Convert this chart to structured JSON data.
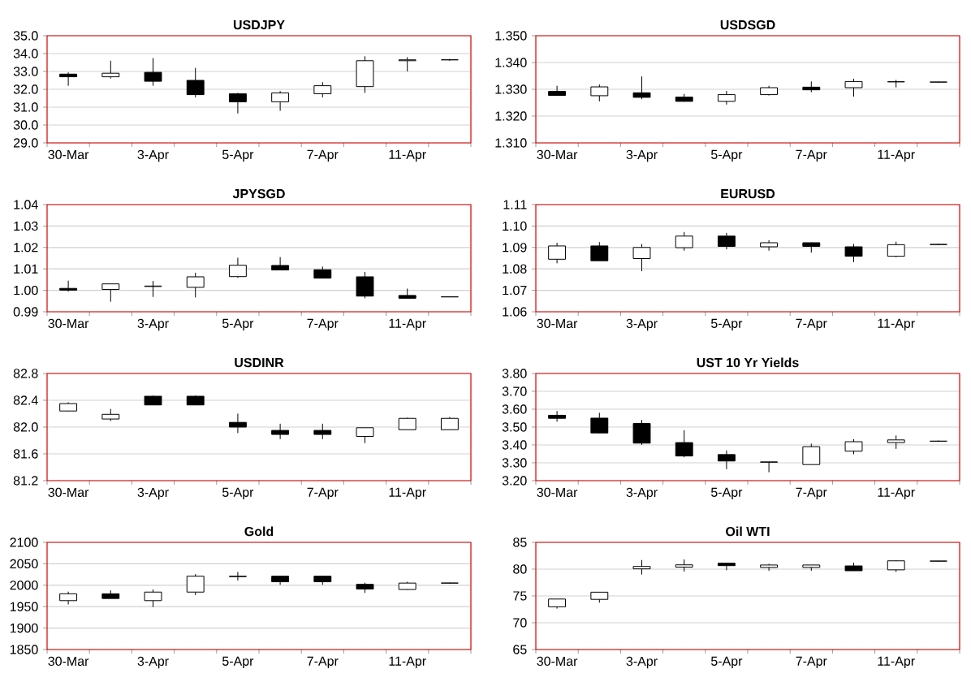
{
  "chart_data": [
    {
      "type": "candlestick",
      "title": "USDJPY",
      "categories": [
        "30-Mar",
        null,
        "3-Apr",
        null,
        "5-Apr",
        null,
        "7-Apr",
        null,
        "11-Apr",
        null
      ],
      "grid": "y",
      "ylim": [
        29,
        35
      ],
      "yticks": [
        {
          "value": 29,
          "label": "29.0"
        },
        {
          "value": 30,
          "label": "30.0"
        },
        {
          "value": 31,
          "label": "31.0"
        },
        {
          "value": 32,
          "label": "32.0"
        },
        {
          "value": 33,
          "label": "33.0"
        },
        {
          "value": 34,
          "label": "34.0"
        },
        {
          "value": 35,
          "label": "35.0"
        }
      ],
      "ohlc": [
        [
          32.85,
          32.95,
          32.2,
          32.7
        ],
        [
          32.7,
          33.6,
          32.6,
          32.9
        ],
        [
          32.95,
          33.75,
          32.2,
          32.45
        ],
        [
          32.5,
          33.2,
          31.55,
          31.7
        ],
        [
          31.75,
          31.8,
          30.65,
          31.3
        ],
        [
          31.3,
          31.9,
          30.8,
          31.8
        ],
        [
          31.75,
          32.4,
          31.55,
          32.2
        ],
        [
          32.15,
          33.85,
          31.8,
          33.6
        ],
        [
          33.6,
          33.8,
          33.0,
          33.65
        ],
        [
          33.65,
          33.7,
          33.6,
          33.65
        ]
      ]
    },
    {
      "type": "candlestick",
      "title": "USDSGD",
      "categories": [
        "30-Mar",
        null,
        "3-Apr",
        null,
        "5-Apr",
        null,
        "7-Apr",
        null,
        "11-Apr",
        null
      ],
      "grid": "y",
      "ylim": [
        1.31,
        1.35
      ],
      "yticks": [
        {
          "value": 1.31,
          "label": "1.310"
        },
        {
          "value": 1.32,
          "label": "1.320"
        },
        {
          "value": 1.33,
          "label": "1.330"
        },
        {
          "value": 1.34,
          "label": "1.340"
        },
        {
          "value": 1.35,
          "label": "1.350"
        }
      ],
      "ohlc": [
        [
          1.3292,
          1.3313,
          1.3276,
          1.3277
        ],
        [
          1.3276,
          1.3318,
          1.3255,
          1.3309
        ],
        [
          1.3287,
          1.3348,
          1.3263,
          1.327
        ],
        [
          1.3271,
          1.3283,
          1.3254,
          1.3255
        ],
        [
          1.3255,
          1.3294,
          1.3243,
          1.328
        ],
        [
          1.328,
          1.3313,
          1.3277,
          1.3306
        ],
        [
          1.3308,
          1.3329,
          1.3289,
          1.3298
        ],
        [
          1.3306,
          1.3339,
          1.3273,
          1.3329
        ],
        [
          1.3328,
          1.3335,
          1.3307,
          1.3328
        ],
        [
          1.3327,
          1.3328,
          1.3325,
          1.3327
        ]
      ]
    },
    {
      "type": "candlestick",
      "title": "JPYSGD",
      "categories": [
        "30-Mar",
        null,
        "3-Apr",
        null,
        "5-Apr",
        null,
        "7-Apr",
        null,
        "11-Apr",
        null
      ],
      "grid": "y",
      "ylim": [
        0.99,
        1.04
      ],
      "yticks": [
        {
          "value": 0.99,
          "label": "0.99"
        },
        {
          "value": 1.0,
          "label": "1.00"
        },
        {
          "value": 1.01,
          "label": "1.01"
        },
        {
          "value": 1.02,
          "label": "1.02"
        },
        {
          "value": 1.03,
          "label": "1.03"
        },
        {
          "value": 1.04,
          "label": "1.04"
        }
      ],
      "ohlc": [
        [
          1.0009,
          1.0045,
          0.9994,
          1.0001
        ],
        [
          1.0004,
          1.003,
          0.9947,
          1.003
        ],
        [
          1.0018,
          1.0044,
          0.9969,
          1.002
        ],
        [
          1.0014,
          1.0082,
          0.9967,
          1.0063
        ],
        [
          1.0064,
          1.0152,
          1.0058,
          1.0117
        ],
        [
          1.0116,
          1.0155,
          1.0094,
          1.0095
        ],
        [
          1.0096,
          1.0111,
          1.0056,
          1.0057
        ],
        [
          1.0063,
          1.0086,
          0.9963,
          0.9973
        ],
        [
          0.9976,
          1.0008,
          0.9962,
          0.9963
        ],
        [
          0.997,
          0.9972,
          0.9968,
          0.9969
        ]
      ]
    },
    {
      "type": "candlestick",
      "title": "EURUSD",
      "categories": [
        "30-Mar",
        null,
        "3-Apr",
        null,
        "5-Apr",
        null,
        "7-Apr",
        null,
        "11-Apr",
        null
      ],
      "grid": "y",
      "ylim": [
        1.06,
        1.11
      ],
      "yticks": [
        {
          "value": 1.06,
          "label": "1.06"
        },
        {
          "value": 1.07,
          "label": "1.07"
        },
        {
          "value": 1.08,
          "label": "1.08"
        },
        {
          "value": 1.09,
          "label": "1.09"
        },
        {
          "value": 1.1,
          "label": "1.10"
        },
        {
          "value": 1.11,
          "label": "1.11"
        }
      ],
      "ohlc": [
        [
          1.0845,
          1.0922,
          1.0826,
          1.0907
        ],
        [
          1.0907,
          1.0925,
          1.0838,
          1.0838
        ],
        [
          1.0848,
          1.0916,
          1.0789,
          1.09
        ],
        [
          1.0899,
          1.0972,
          1.0885,
          1.0953
        ],
        [
          1.0953,
          1.0968,
          1.0891,
          1.0905
        ],
        [
          1.0903,
          1.0934,
          1.0885,
          1.0922
        ],
        [
          1.0922,
          1.0923,
          1.0876,
          1.0905
        ],
        [
          1.0903,
          1.0916,
          1.0831,
          1.0859
        ],
        [
          1.0859,
          1.0927,
          1.0855,
          1.0913
        ],
        [
          1.0914,
          1.0916,
          1.0912,
          1.0914
        ]
      ]
    },
    {
      "type": "candlestick",
      "title": "USDINR",
      "categories": [
        "30-Mar",
        null,
        "3-Apr",
        null,
        "5-Apr",
        null,
        "7-Apr",
        null,
        "11-Apr",
        null
      ],
      "grid": "y",
      "ylim": [
        81.2,
        82.8
      ],
      "yticks": [
        {
          "value": 81.2,
          "label": "81.2"
        },
        {
          "value": 81.6,
          "label": "81.6"
        },
        {
          "value": 82.0,
          "label": "82.0"
        },
        {
          "value": 82.4,
          "label": "82.4"
        },
        {
          "value": 82.8,
          "label": "82.8"
        }
      ],
      "ohlc": [
        [
          82.24,
          82.37,
          82.23,
          82.35
        ],
        [
          82.12,
          82.27,
          82.09,
          82.19
        ],
        [
          82.46,
          82.47,
          82.33,
          82.33
        ],
        [
          82.46,
          82.47,
          82.33,
          82.33
        ],
        [
          82.07,
          82.2,
          81.91,
          82.0
        ],
        [
          81.95,
          82.05,
          81.82,
          81.89
        ],
        [
          81.95,
          82.05,
          81.82,
          81.89
        ],
        [
          81.86,
          81.99,
          81.76,
          81.99
        ],
        [
          81.96,
          82.14,
          81.96,
          82.13
        ],
        [
          81.96,
          82.15,
          81.96,
          82.13
        ]
      ]
    },
    {
      "type": "candlestick",
      "title": "UST 10 Yr Yields",
      "categories": [
        "30-Mar",
        null,
        "3-Apr",
        null,
        "5-Apr",
        null,
        "7-Apr",
        null,
        "11-Apr",
        null
      ],
      "grid": "y",
      "ylim": [
        3.2,
        3.8
      ],
      "yticks": [
        {
          "value": 3.2,
          "label": "3.20"
        },
        {
          "value": 3.3,
          "label": "3.30"
        },
        {
          "value": 3.4,
          "label": "3.40"
        },
        {
          "value": 3.5,
          "label": "3.50"
        },
        {
          "value": 3.6,
          "label": "3.60"
        },
        {
          "value": 3.7,
          "label": "3.70"
        },
        {
          "value": 3.8,
          "label": "3.80"
        }
      ],
      "ohlc": [
        [
          3.566,
          3.59,
          3.53,
          3.549
        ],
        [
          3.55,
          3.58,
          3.465,
          3.467
        ],
        [
          3.52,
          3.54,
          3.4,
          3.41
        ],
        [
          3.413,
          3.482,
          3.331,
          3.338
        ],
        [
          3.346,
          3.369,
          3.264,
          3.31
        ],
        [
          3.303,
          3.305,
          3.247,
          3.305
        ],
        [
          3.29,
          3.407,
          3.29,
          3.39
        ],
        [
          3.365,
          3.432,
          3.348,
          3.418
        ],
        [
          3.413,
          3.453,
          3.378,
          3.428
        ],
        [
          3.421,
          3.425,
          3.419,
          3.421
        ]
      ]
    },
    {
      "type": "candlestick",
      "title": "Gold",
      "categories": [
        "30-Mar",
        null,
        "3-Apr",
        null,
        "5-Apr",
        null,
        "7-Apr",
        null,
        "11-Apr",
        null
      ],
      "grid": "y",
      "ylim": [
        1850,
        2100
      ],
      "yticks": [
        1850,
        1900,
        1950,
        2000,
        2050,
        2100
      ],
      "ohlc": [
        [
          1964,
          1985,
          1955,
          1980
        ],
        [
          1980,
          1988,
          1969,
          1969
        ],
        [
          1964,
          1990,
          1949,
          1984
        ],
        [
          1984,
          2026,
          1977,
          2021
        ],
        [
          2020,
          2031,
          2011,
          2021
        ],
        [
          2021,
          2022,
          2001,
          2008
        ],
        [
          2021,
          2022,
          2001,
          2008
        ],
        [
          2002,
          2006,
          1982,
          1991
        ],
        [
          1990,
          2008,
          1989,
          2005
        ],
        [
          2005,
          2006,
          2004,
          2005
        ]
      ]
    },
    {
      "type": "candlestick",
      "title": "Oil WTI",
      "categories": [
        "30-Mar",
        null,
        "3-Apr",
        null,
        "5-Apr",
        null,
        "7-Apr",
        null,
        "11-Apr",
        null
      ],
      "grid": "y",
      "ylim": [
        65,
        85
      ],
      "yticks": [
        65,
        70,
        75,
        80,
        85
      ],
      "ohlc": [
        [
          72.97,
          74.42,
          72.63,
          74.42
        ],
        [
          74.36,
          75.7,
          73.75,
          75.7
        ],
        [
          80.05,
          81.7,
          79.0,
          80.5
        ],
        [
          80.38,
          81.8,
          79.55,
          80.8
        ],
        [
          81.1,
          81.1,
          79.8,
          80.65
        ],
        [
          80.32,
          81.0,
          79.7,
          80.77
        ],
        [
          80.32,
          80.77,
          79.7,
          80.77
        ],
        [
          80.6,
          81.2,
          79.7,
          79.7
        ],
        [
          79.87,
          81.66,
          79.48,
          81.55
        ],
        [
          81.5,
          81.55,
          81.45,
          81.5
        ]
      ]
    }
  ]
}
